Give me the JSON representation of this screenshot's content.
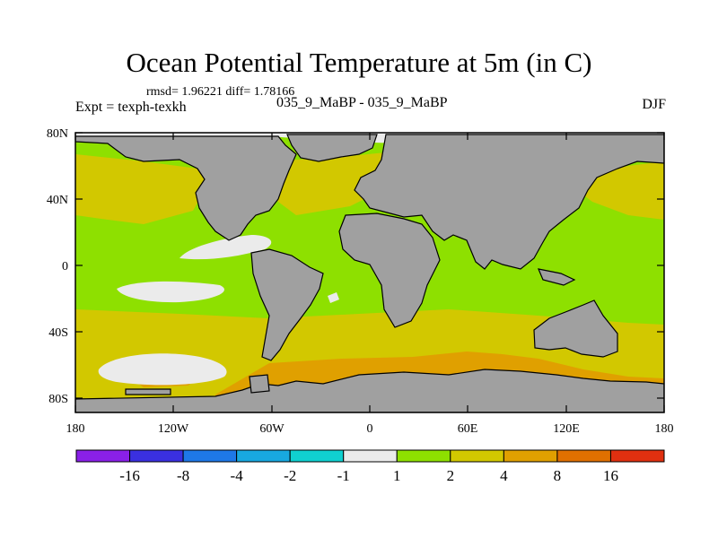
{
  "title": "Ocean Potential Temperature at 5m (in C)",
  "stats": "rmsd= 1.96221 diff= 1.78166",
  "experiment_label": "Expt = texph-texkh",
  "experiment_names": "035_9_MaBP - 035_9_MaBP",
  "season": "DJF",
  "map": {
    "lon_ticks": [
      "180",
      "120W",
      "60W",
      "0",
      "60E",
      "120E",
      "180"
    ],
    "lat_ticks": [
      "80N",
      "40N",
      "0",
      "40S",
      "80S"
    ],
    "colors": {
      "land": "#a0a0a0",
      "ocean_white": "#ebebeb",
      "bin_1_2": "#8ee000",
      "bin_2_4": "#d2c800",
      "bin_4_8": "#e0a000"
    }
  },
  "colorbar": {
    "labels": [
      "-16",
      "-8",
      "-4",
      "-2",
      "-1",
      "1",
      "2",
      "4",
      "8",
      "16"
    ],
    "colors": [
      "#8a20e8",
      "#3a30e0",
      "#1e78e8",
      "#18a8e0",
      "#10d0d0",
      "#ebebeb",
      "#8ee000",
      "#d2c800",
      "#e0a000",
      "#e07000",
      "#e03010"
    ]
  }
}
